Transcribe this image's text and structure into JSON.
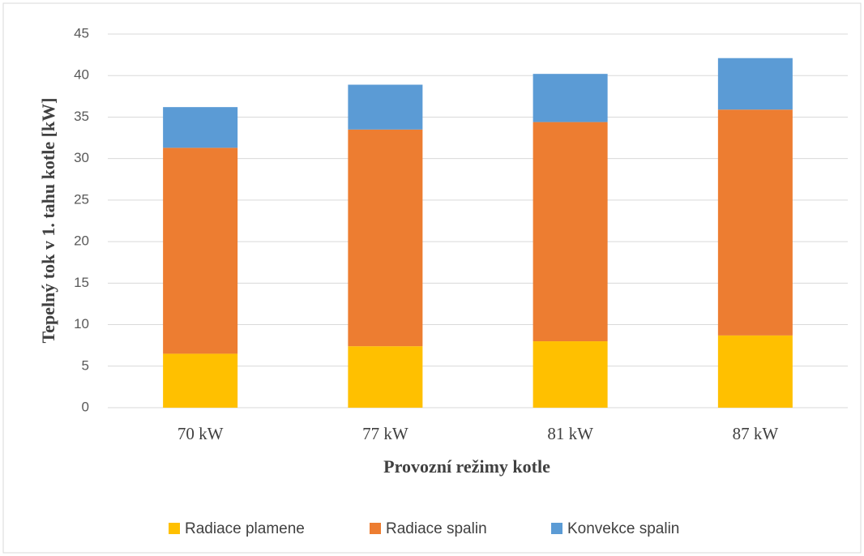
{
  "chart_data": {
    "type": "stacked_bar",
    "x_label": "Provozní režimy kotle",
    "y_label": "Tepelný tok v 1. tahu kotle [kW]",
    "categories": [
      "70 kW",
      "77 kW",
      "81 kW",
      "87 kW"
    ],
    "series": [
      {
        "name": "Radiace plamene",
        "color": "#ffc000",
        "values": [
          6.5,
          7.4,
          8.0,
          8.7
        ]
      },
      {
        "name": "Radiace spalin",
        "color": "#ed7d31",
        "values": [
          24.8,
          26.1,
          26.4,
          27.2
        ]
      },
      {
        "name": "Konvekce spalin",
        "color": "#5b9bd5",
        "values": [
          4.9,
          5.4,
          5.8,
          6.2
        ]
      }
    ],
    "ylim": [
      0,
      45
    ],
    "yticks": [
      0,
      5,
      10,
      15,
      20,
      25,
      30,
      35,
      40,
      45
    ],
    "grid": true,
    "legend": "bottom"
  }
}
